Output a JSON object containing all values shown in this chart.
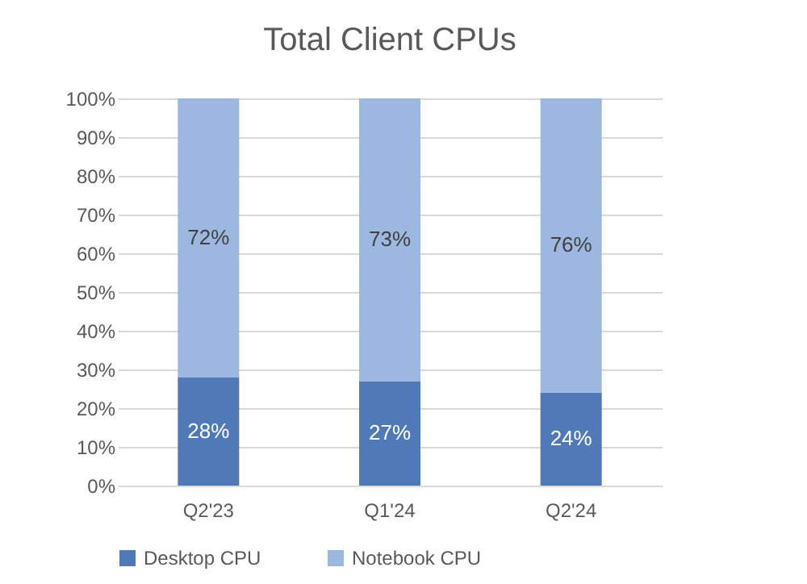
{
  "chart_data": {
    "type": "bar",
    "title": "Total Client CPUs",
    "stacked": true,
    "categories": [
      "Q2'23",
      "Q1'24",
      "Q2'24"
    ],
    "series": [
      {
        "name": "Desktop CPU",
        "color": "#4f79b7",
        "values": [
          28,
          27,
          24
        ],
        "value_labels": [
          "28%",
          "27%",
          "24%"
        ]
      },
      {
        "name": "Notebook CPU",
        "color": "#9db8e0",
        "values": [
          72,
          73,
          76
        ],
        "value_labels": [
          "72%",
          "73%",
          "76%"
        ]
      }
    ],
    "ylim": [
      0,
      100
    ],
    "yticks": [
      {
        "value": 0,
        "label": "0%"
      },
      {
        "value": 10,
        "label": "10%"
      },
      {
        "value": 20,
        "label": "20%"
      },
      {
        "value": 30,
        "label": "30%"
      },
      {
        "value": 40,
        "label": "40%"
      },
      {
        "value": 50,
        "label": "50%"
      },
      {
        "value": 60,
        "label": "60%"
      },
      {
        "value": 70,
        "label": "70%"
      },
      {
        "value": 80,
        "label": "80%"
      },
      {
        "value": 90,
        "label": "90%"
      },
      {
        "value": 100,
        "label": "100%"
      }
    ],
    "grid": "y",
    "legend": "bottom"
  }
}
